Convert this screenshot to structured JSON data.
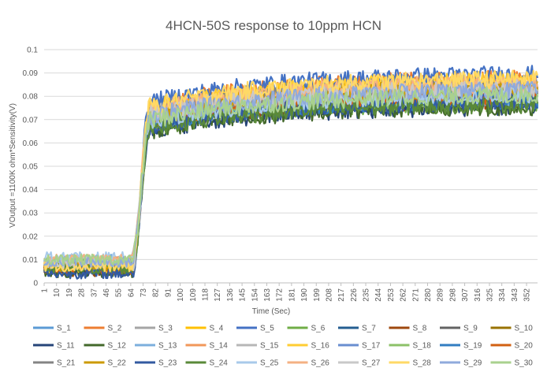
{
  "chart_data": {
    "type": "line",
    "title": "4HCN-50S response to 10ppm HCN",
    "xlabel": "Time (Sec)",
    "ylabel": "VOutput =1100K ohm*Sensitivity(V)",
    "ylim": [
      0,
      0.1
    ],
    "yticks": [
      "0",
      "0.01",
      "0.02",
      "0.03",
      "0.04",
      "0.05",
      "0.06",
      "0.07",
      "0.08",
      "0.09",
      "0.1"
    ],
    "xlim": [
      1,
      360
    ],
    "xticks": [
      "1",
      "10",
      "19",
      "28",
      "37",
      "46",
      "55",
      "64",
      "73",
      "82",
      "91",
      "100",
      "109",
      "118",
      "127",
      "136",
      "145",
      "154",
      "163",
      "172",
      "181",
      "190",
      "199",
      "208",
      "217",
      "226",
      "235",
      "244",
      "253",
      "262",
      "271",
      "280",
      "289",
      "298",
      "307",
      "316",
      "325",
      "334",
      "343",
      "352"
    ],
    "grid": "horizontal",
    "legend_position": "bottom",
    "response_profile": {
      "baseline_until_sec": 65,
      "rise_end_sec": 78,
      "value_at_rise_end_fraction": 0.86,
      "time_constant_sec": 90
    },
    "series": [
      {
        "name": "S_1",
        "color": "#5B9BD5",
        "baseline": 0.006,
        "plateau": 0.083
      },
      {
        "name": "S_2",
        "color": "#ED7D31",
        "baseline": 0.008,
        "plateau": 0.088
      },
      {
        "name": "S_3",
        "color": "#A5A5A5",
        "baseline": 0.007,
        "plateau": 0.085
      },
      {
        "name": "S_4",
        "color": "#FFC000",
        "baseline": 0.009,
        "plateau": 0.086
      },
      {
        "name": "S_5",
        "color": "#4472C4",
        "baseline": 0.0085,
        "plateau": 0.09
      },
      {
        "name": "S_6",
        "color": "#70AD47",
        "baseline": 0.007,
        "plateau": 0.078
      },
      {
        "name": "S_7",
        "color": "#255E91",
        "baseline": 0.006,
        "plateau": 0.08
      },
      {
        "name": "S_8",
        "color": "#9E480E",
        "baseline": 0.005,
        "plateau": 0.079
      },
      {
        "name": "S_9",
        "color": "#636363",
        "baseline": 0.008,
        "plateau": 0.083
      },
      {
        "name": "S_10",
        "color": "#997300",
        "baseline": 0.007,
        "plateau": 0.081
      },
      {
        "name": "S_11",
        "color": "#264478",
        "baseline": 0.005,
        "plateau": 0.076
      },
      {
        "name": "S_12",
        "color": "#43682B",
        "baseline": 0.0045,
        "plateau": 0.076
      },
      {
        "name": "S_13",
        "color": "#7CAFDD",
        "baseline": 0.01,
        "plateau": 0.08
      },
      {
        "name": "S_14",
        "color": "#F1975A",
        "baseline": 0.009,
        "plateau": 0.083
      },
      {
        "name": "S_15",
        "color": "#B7B7B7",
        "baseline": 0.008,
        "plateau": 0.084
      },
      {
        "name": "S_16",
        "color": "#FFCD33",
        "baseline": 0.0065,
        "plateau": 0.087
      },
      {
        "name": "S_17",
        "color": "#698ED0",
        "baseline": 0.0075,
        "plateau": 0.082
      },
      {
        "name": "S_18",
        "color": "#8CC168",
        "baseline": 0.009,
        "plateau": 0.08
      },
      {
        "name": "S_19",
        "color": "#327DC2",
        "baseline": 0.007,
        "plateau": 0.079
      },
      {
        "name": "S_20",
        "color": "#D26012",
        "baseline": 0.006,
        "plateau": 0.081
      },
      {
        "name": "S_21",
        "color": "#848484",
        "baseline": 0.008,
        "plateau": 0.084
      },
      {
        "name": "S_22",
        "color": "#CC9A00",
        "baseline": 0.007,
        "plateau": 0.084
      },
      {
        "name": "S_23",
        "color": "#335AA1",
        "baseline": 0.004,
        "plateau": 0.078
      },
      {
        "name": "S_24",
        "color": "#5A8A39",
        "baseline": 0.006,
        "plateau": 0.077
      },
      {
        "name": "S_25",
        "color": "#A8CAEA",
        "baseline": 0.011,
        "plateau": 0.081
      },
      {
        "name": "S_26",
        "color": "#F4B183",
        "baseline": 0.01,
        "plateau": 0.086
      },
      {
        "name": "S_27",
        "color": "#C9C9C9",
        "baseline": 0.008,
        "plateau": 0.084
      },
      {
        "name": "S_28",
        "color": "#FFD966",
        "baseline": 0.007,
        "plateau": 0.088
      },
      {
        "name": "S_29",
        "color": "#8FAADC",
        "baseline": 0.009,
        "plateau": 0.083
      },
      {
        "name": "S_30",
        "color": "#A9D18E",
        "baseline": 0.01,
        "plateau": 0.081
      }
    ]
  }
}
